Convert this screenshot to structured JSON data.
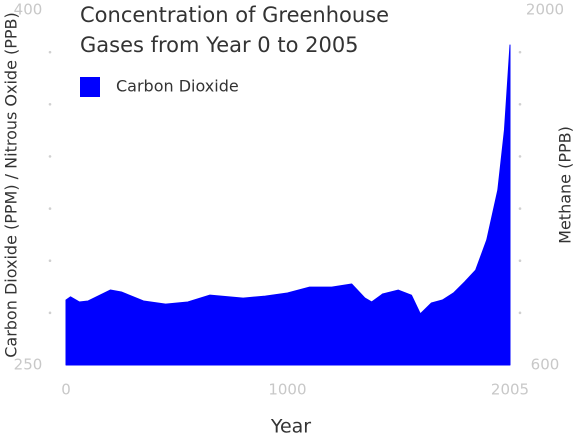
{
  "chart_data": {
    "type": "area",
    "title": "Concentration of Greenhouse Gases from Year 0 to 2005",
    "x_label": "Year",
    "y_label": "Carbon Dioxide (PPM) / Nitrous Oxide (PPB)",
    "y2_label": "Methane (PPB)",
    "x": [
      0,
      20,
      60,
      100,
      200,
      250,
      350,
      450,
      550,
      650,
      700,
      800,
      900,
      1000,
      1100,
      1200,
      1290,
      1350,
      1380,
      1430,
      1500,
      1560,
      1600,
      1650,
      1700,
      1750,
      1800,
      1850,
      1900,
      1950,
      1980,
      2005
    ],
    "series": [
      {
        "name": "Carbon Dioxide",
        "color": "#0000ff",
        "values": [
          276.7,
          278,
          275.9,
          276.3,
          280.8,
          280,
          276.3,
          275,
          275.9,
          278.7,
          278.3,
          277.5,
          278.3,
          279.6,
          282,
          282,
          283.3,
          277.5,
          275.9,
          279.2,
          280.8,
          278.7,
          271,
          275.5,
          276.7,
          279.6,
          284.1,
          289,
          301.4,
          321.9,
          346.6,
          381.5
        ]
      }
    ],
    "xlim": [
      0,
      2005
    ],
    "xticks": [
      0,
      1000,
      2005
    ],
    "ylim": [
      250,
      400
    ],
    "yticks": [
      250,
      400
    ],
    "y2lim": [
      600,
      2000
    ],
    "y2ticks": [
      600,
      2000
    ],
    "grid": true,
    "legend": "top-left"
  }
}
